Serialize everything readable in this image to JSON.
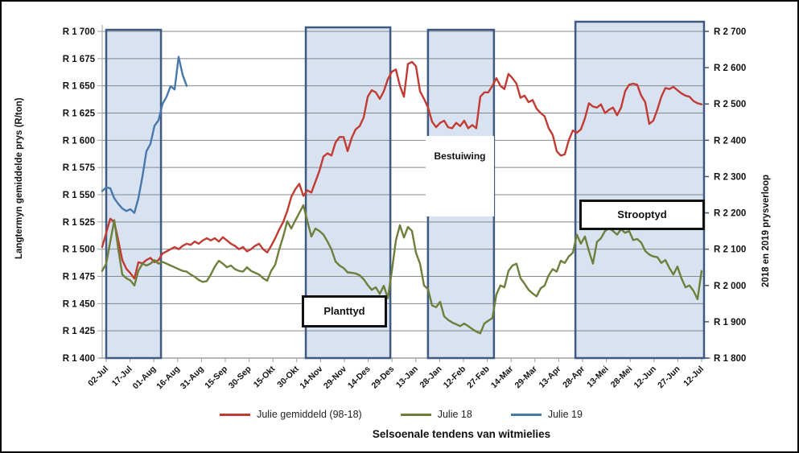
{
  "caption": "Selsoenale tendens van witmielies",
  "chart_data": {
    "type": "line",
    "grid": true,
    "x_axis": {
      "tick_labels": [
        "02-Jul",
        "17-Jul",
        "01-Aug",
        "16-Aug",
        "31-Aug",
        "15-Sep",
        "30-Sep",
        "15-Okt",
        "30-Okt",
        "14-Nov",
        "29-Nov",
        "14-Des",
        "29-Des",
        "13-Jan",
        "28-Jan",
        "12-Feb",
        "27-Feb",
        "14-Mar",
        "29-Mar",
        "13-Apr",
        "28-Apr",
        "13-Mei",
        "28-Mei",
        "12-Jun",
        "27-Jun",
        "12-Jul"
      ]
    },
    "left_axis": {
      "label": "Langtermyn gemiddelde prys (R/ton)",
      "min": 1400,
      "max": 1700,
      "step": 25,
      "tick_labels": [
        "R 1 400",
        "R 1 425",
        "R 1 450",
        "R 1 475",
        "R 1 500",
        "R 1 525",
        "R 1 550",
        "R 1 575",
        "R 1 600",
        "R 1 625",
        "R 1 650",
        "R 1 675",
        "R 1 700"
      ]
    },
    "right_axis": {
      "label": "2018 en 2019 prysverloop",
      "min": 1800,
      "max": 2700,
      "step": 100,
      "tick_labels": [
        "R 1 800",
        "R 1 900",
        "R 2 000",
        "R 2 100",
        "R 2 200",
        "R 2 300",
        "R 2 400",
        "R 2 500",
        "R 2 600",
        "R 2 700"
      ]
    },
    "regions": [
      {
        "label": "",
        "t_start": 0.0,
        "t_end": 2.3
      },
      {
        "label": "Planttyd",
        "t_start": 8.38,
        "t_end": 11.93
      },
      {
        "label": "Bestuiwing",
        "t_start": 13.51,
        "t_end": 16.28
      },
      {
        "label": "Strooptyd",
        "t_start": 19.7,
        "t_end": 25.1
      }
    ],
    "series": [
      {
        "name": "Julie gemiddeld (98-18)",
        "color": "#c23b33",
        "axis": "left",
        "t0": -0.169,
        "dt": 0.1689,
        "values": [
          1502,
          1515,
          1528,
          1525,
          1508,
          1490,
          1482,
          1478,
          1473,
          1488,
          1487,
          1490,
          1492,
          1488,
          1490,
          1496,
          1498,
          1500,
          1502,
          1500,
          1503,
          1505,
          1504,
          1507,
          1505,
          1508,
          1510,
          1508,
          1510,
          1507,
          1511,
          1508,
          1505,
          1503,
          1500,
          1502,
          1498,
          1500,
          1503,
          1505,
          1500,
          1497,
          1503,
          1510,
          1518,
          1525,
          1535,
          1548,
          1555,
          1560,
          1549,
          1554,
          1552,
          1562,
          1572,
          1585,
          1588,
          1586,
          1598,
          1603,
          1603,
          1590,
          1602,
          1610,
          1613,
          1621,
          1640,
          1646,
          1644,
          1638,
          1645,
          1656,
          1663,
          1665,
          1650,
          1640,
          1670,
          1672,
          1668,
          1645,
          1638,
          1630,
          1617,
          1612,
          1616,
          1618,
          1612,
          1611,
          1616,
          1613,
          1618,
          1611,
          1614,
          1611,
          1640,
          1644,
          1644,
          1650,
          1657,
          1650,
          1647,
          1661,
          1657,
          1652,
          1639,
          1641,
          1635,
          1637,
          1629,
          1625,
          1622,
          1611,
          1605,
          1590,
          1586,
          1587,
          1600,
          1609,
          1607,
          1610,
          1620,
          1634,
          1631,
          1630,
          1633,
          1625,
          1628,
          1630,
          1623,
          1630,
          1645,
          1651,
          1652,
          1651,
          1641,
          1635,
          1615,
          1618,
          1628,
          1640,
          1648,
          1647,
          1649,
          1646,
          1643,
          1641,
          1640,
          1636,
          1634,
          1633
        ]
      },
      {
        "name": "Julie 18",
        "color": "#6e7f3c",
        "axis": "right",
        "t0": -0.169,
        "dt": 0.1689,
        "values": [
          2040,
          2060,
          2120,
          2180,
          2100,
          2030,
          2020,
          2014,
          2000,
          2040,
          2060,
          2055,
          2060,
          2070,
          2060,
          2065,
          2060,
          2055,
          2050,
          2045,
          2040,
          2038,
          2030,
          2024,
          2015,
          2010,
          2012,
          2030,
          2052,
          2068,
          2060,
          2050,
          2055,
          2045,
          2040,
          2038,
          2050,
          2040,
          2035,
          2030,
          2020,
          2013,
          2040,
          2057,
          2099,
          2135,
          2177,
          2157,
          2179,
          2200,
          2221,
          2177,
          2135,
          2157,
          2150,
          2140,
          2121,
          2099,
          2066,
          2055,
          2048,
          2036,
          2035,
          2033,
          2028,
          2017,
          2001,
          1988,
          1995,
          1977,
          1999,
          1965,
          2040,
          2124,
          2166,
          2132,
          2161,
          2150,
          2090,
          2060,
          2000,
          1990,
          1945,
          1940,
          1955,
          1915,
          1905,
          1898,
          1893,
          1888,
          1895,
          1888,
          1880,
          1873,
          1868,
          1895,
          1903,
          1910,
          1975,
          2000,
          1995,
          2040,
          2055,
          2060,
          2020,
          2005,
          1988,
          1978,
          1970,
          1992,
          2000,
          2028,
          2045,
          2038,
          2068,
          2062,
          2080,
          2090,
          2140,
          2115,
          2135,
          2095,
          2060,
          2120,
          2130,
          2150,
          2158,
          2150,
          2140,
          2155,
          2145,
          2150,
          2125,
          2128,
          2118,
          2095,
          2085,
          2080,
          2078,
          2062,
          2070,
          2048,
          2030,
          2052,
          2020,
          1995,
          2000,
          1985,
          1962,
          2040
        ]
      },
      {
        "name": "Julie 19",
        "color": "#4878ac",
        "axis": "right",
        "t0": -0.169,
        "dt": 0.1689,
        "values": [
          2260,
          2270,
          2268,
          2240,
          2225,
          2212,
          2205,
          2210,
          2200,
          2240,
          2300,
          2370,
          2390,
          2440,
          2455,
          2500,
          2520,
          2549,
          2540,
          2630,
          2580,
          2550
        ]
      }
    ]
  },
  "colors": {
    "region_fill": "#d9e2f0",
    "region_border": "#3e5a7e",
    "grid": "#85898e",
    "axis_line": "#9aa0a4",
    "right_axis_line": "#44546a",
    "tick_text": "#111111"
  }
}
